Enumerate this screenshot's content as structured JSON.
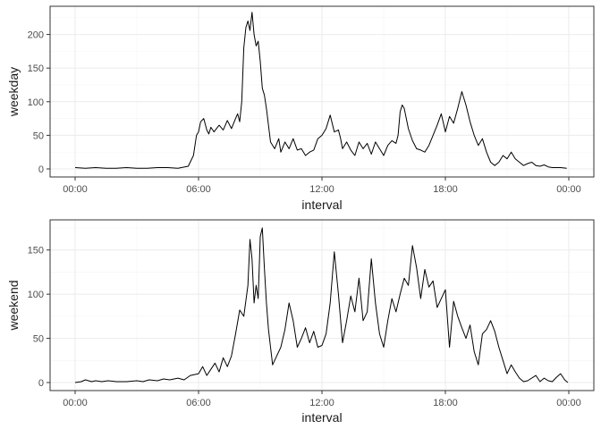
{
  "chart_data": [
    {
      "type": "line",
      "xlabel": "interval",
      "ylabel": "weekday",
      "x_ticks": [
        "00:00",
        "06:00",
        "12:00",
        "18:00",
        "00:00"
      ],
      "y_ticks": [
        0,
        50,
        100,
        150,
        200
      ],
      "xlim_hours": [
        0,
        24
      ],
      "ylim": [
        0,
        230
      ],
      "grid": true,
      "series": [
        {
          "color": "#000000",
          "points": [
            [
              0.0,
              2
            ],
            [
              0.5,
              1
            ],
            [
              1.0,
              2
            ],
            [
              1.5,
              1
            ],
            [
              2.0,
              1
            ],
            [
              2.5,
              2
            ],
            [
              3.0,
              1
            ],
            [
              3.5,
              1
            ],
            [
              4.0,
              2
            ],
            [
              4.5,
              2
            ],
            [
              5.0,
              1
            ],
            [
              5.5,
              4
            ],
            [
              5.75,
              20
            ],
            [
              5.9,
              50
            ],
            [
              6.0,
              55
            ],
            [
              6.1,
              70
            ],
            [
              6.25,
              75
            ],
            [
              6.4,
              58
            ],
            [
              6.5,
              52
            ],
            [
              6.6,
              62
            ],
            [
              6.75,
              55
            ],
            [
              7.0,
              65
            ],
            [
              7.2,
              58
            ],
            [
              7.4,
              72
            ],
            [
              7.6,
              60
            ],
            [
              7.8,
              75
            ],
            [
              7.9,
              82
            ],
            [
              8.0,
              70
            ],
            [
              8.1,
              100
            ],
            [
              8.2,
              180
            ],
            [
              8.3,
              210
            ],
            [
              8.4,
              220
            ],
            [
              8.5,
              206
            ],
            [
              8.6,
              233
            ],
            [
              8.7,
              200
            ],
            [
              8.8,
              183
            ],
            [
              8.9,
              190
            ],
            [
              9.0,
              160
            ],
            [
              9.1,
              120
            ],
            [
              9.2,
              110
            ],
            [
              9.3,
              90
            ],
            [
              9.5,
              40
            ],
            [
              9.7,
              30
            ],
            [
              9.9,
              45
            ],
            [
              10.0,
              25
            ],
            [
              10.2,
              40
            ],
            [
              10.4,
              30
            ],
            [
              10.6,
              45
            ],
            [
              10.8,
              28
            ],
            [
              11.0,
              30
            ],
            [
              11.2,
              20
            ],
            [
              11.4,
              25
            ],
            [
              11.6,
              28
            ],
            [
              11.8,
              45
            ],
            [
              12.0,
              50
            ],
            [
              12.2,
              60
            ],
            [
              12.4,
              80
            ],
            [
              12.6,
              55
            ],
            [
              12.8,
              58
            ],
            [
              12.9,
              46
            ],
            [
              13.0,
              30
            ],
            [
              13.2,
              40
            ],
            [
              13.4,
              28
            ],
            [
              13.6,
              20
            ],
            [
              13.8,
              40
            ],
            [
              14.0,
              30
            ],
            [
              14.2,
              38
            ],
            [
              14.4,
              22
            ],
            [
              14.6,
              40
            ],
            [
              14.8,
              30
            ],
            [
              15.0,
              20
            ],
            [
              15.2,
              35
            ],
            [
              15.4,
              42
            ],
            [
              15.6,
              38
            ],
            [
              15.7,
              50
            ],
            [
              15.8,
              85
            ],
            [
              15.9,
              95
            ],
            [
              16.0,
              90
            ],
            [
              16.2,
              60
            ],
            [
              16.4,
              42
            ],
            [
              16.6,
              30
            ],
            [
              16.8,
              28
            ],
            [
              17.0,
              25
            ],
            [
              17.2,
              35
            ],
            [
              17.4,
              50
            ],
            [
              17.6,
              65
            ],
            [
              17.8,
              82
            ],
            [
              18.0,
              55
            ],
            [
              18.2,
              78
            ],
            [
              18.4,
              68
            ],
            [
              18.6,
              90
            ],
            [
              18.8,
              115
            ],
            [
              19.0,
              95
            ],
            [
              19.2,
              70
            ],
            [
              19.4,
              50
            ],
            [
              19.6,
              35
            ],
            [
              19.8,
              45
            ],
            [
              20.0,
              25
            ],
            [
              20.2,
              10
            ],
            [
              20.4,
              5
            ],
            [
              20.6,
              10
            ],
            [
              20.8,
              20
            ],
            [
              21.0,
              15
            ],
            [
              21.2,
              25
            ],
            [
              21.4,
              15
            ],
            [
              21.6,
              10
            ],
            [
              21.8,
              5
            ],
            [
              22.0,
              8
            ],
            [
              22.2,
              10
            ],
            [
              22.4,
              5
            ],
            [
              22.6,
              4
            ],
            [
              22.8,
              6
            ],
            [
              23.0,
              3
            ],
            [
              23.2,
              2
            ],
            [
              23.6,
              2
            ],
            [
              23.9,
              1
            ]
          ]
        }
      ]
    },
    {
      "type": "line",
      "xlabel": "interval",
      "ylabel": "weekend",
      "x_ticks": [
        "00:00",
        "06:00",
        "12:00",
        "18:00",
        "00:00"
      ],
      "y_ticks": [
        0,
        50,
        100,
        150
      ],
      "xlim_hours": [
        0,
        24
      ],
      "ylim": [
        0,
        175
      ],
      "grid": true,
      "series": [
        {
          "color": "#000000",
          "points": [
            [
              0.0,
              0
            ],
            [
              0.3,
              1
            ],
            [
              0.5,
              3
            ],
            [
              0.8,
              1
            ],
            [
              1.0,
              2
            ],
            [
              1.3,
              1
            ],
            [
              1.6,
              2
            ],
            [
              2.0,
              1
            ],
            [
              2.5,
              1
            ],
            [
              3.0,
              2
            ],
            [
              3.3,
              1
            ],
            [
              3.6,
              3
            ],
            [
              4.0,
              2
            ],
            [
              4.3,
              4
            ],
            [
              4.6,
              3
            ],
            [
              5.0,
              5
            ],
            [
              5.3,
              3
            ],
            [
              5.6,
              8
            ],
            [
              6.0,
              10
            ],
            [
              6.2,
              18
            ],
            [
              6.4,
              8
            ],
            [
              6.6,
              15
            ],
            [
              6.8,
              22
            ],
            [
              7.0,
              12
            ],
            [
              7.2,
              28
            ],
            [
              7.4,
              18
            ],
            [
              7.6,
              30
            ],
            [
              7.8,
              55
            ],
            [
              8.0,
              82
            ],
            [
              8.2,
              75
            ],
            [
              8.4,
              110
            ],
            [
              8.5,
              162
            ],
            [
              8.6,
              140
            ],
            [
              8.7,
              90
            ],
            [
              8.8,
              110
            ],
            [
              8.9,
              95
            ],
            [
              9.0,
              165
            ],
            [
              9.1,
              175
            ],
            [
              9.2,
              130
            ],
            [
              9.3,
              90
            ],
            [
              9.4,
              60
            ],
            [
              9.5,
              40
            ],
            [
              9.6,
              20
            ],
            [
              9.8,
              30
            ],
            [
              10.0,
              40
            ],
            [
              10.2,
              60
            ],
            [
              10.4,
              90
            ],
            [
              10.6,
              70
            ],
            [
              10.8,
              40
            ],
            [
              11.0,
              50
            ],
            [
              11.2,
              62
            ],
            [
              11.4,
              45
            ],
            [
              11.6,
              58
            ],
            [
              11.8,
              40
            ],
            [
              12.0,
              42
            ],
            [
              12.2,
              55
            ],
            [
              12.4,
              90
            ],
            [
              12.6,
              148
            ],
            [
              12.8,
              100
            ],
            [
              13.0,
              45
            ],
            [
              13.2,
              70
            ],
            [
              13.4,
              98
            ],
            [
              13.6,
              80
            ],
            [
              13.8,
              118
            ],
            [
              14.0,
              70
            ],
            [
              14.2,
              80
            ],
            [
              14.4,
              140
            ],
            [
              14.6,
              90
            ],
            [
              14.8,
              55
            ],
            [
              15.0,
              40
            ],
            [
              15.2,
              70
            ],
            [
              15.4,
              95
            ],
            [
              15.6,
              80
            ],
            [
              15.8,
              100
            ],
            [
              16.0,
              118
            ],
            [
              16.2,
              110
            ],
            [
              16.4,
              155
            ],
            [
              16.6,
              130
            ],
            [
              16.8,
              95
            ],
            [
              17.0,
              128
            ],
            [
              17.2,
              108
            ],
            [
              17.4,
              115
            ],
            [
              17.6,
              85
            ],
            [
              17.8,
              95
            ],
            [
              18.0,
              105
            ],
            [
              18.2,
              40
            ],
            [
              18.4,
              92
            ],
            [
              18.6,
              75
            ],
            [
              18.8,
              62
            ],
            [
              19.0,
              50
            ],
            [
              19.2,
              65
            ],
            [
              19.4,
              35
            ],
            [
              19.6,
              20
            ],
            [
              19.8,
              55
            ],
            [
              20.0,
              60
            ],
            [
              20.2,
              70
            ],
            [
              20.4,
              58
            ],
            [
              20.6,
              40
            ],
            [
              20.8,
              25
            ],
            [
              21.0,
              10
            ],
            [
              21.2,
              20
            ],
            [
              21.4,
              12
            ],
            [
              21.6,
              5
            ],
            [
              21.8,
              1
            ],
            [
              22.0,
              2
            ],
            [
              22.4,
              8
            ],
            [
              22.6,
              1
            ],
            [
              22.8,
              5
            ],
            [
              23.0,
              2
            ],
            [
              23.2,
              1
            ],
            [
              23.4,
              6
            ],
            [
              23.6,
              10
            ],
            [
              23.8,
              3
            ],
            [
              23.95,
              0
            ]
          ]
        }
      ]
    }
  ]
}
